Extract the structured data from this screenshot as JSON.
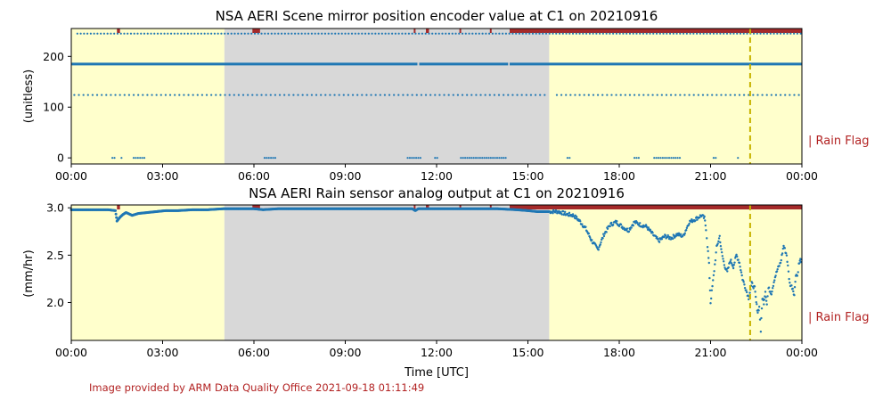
{
  "credit": "Image provided by ARM Data Quality Office 2021-09-18 01:11:49",
  "rain_flag_label": "| Rain Flag",
  "colors": {
    "day_shade": "#ffffcc",
    "night_shade": "#d8d8d8",
    "data": "#1f77b4",
    "rain_flag": "#a52a2a",
    "dashed_marker": "#c8b400",
    "credit_text": "#b22222"
  },
  "chart_data": [
    {
      "type": "scatter",
      "title": "NSA AERI Scene mirror position encoder value at C1 on 20210916",
      "xlabel": "",
      "ylabel": "(unitless)",
      "xlim": [
        0,
        24
      ],
      "ylim": [
        -12,
        255
      ],
      "x_ticks": [
        "00:00",
        "03:00",
        "06:00",
        "09:00",
        "12:00",
        "15:00",
        "18:00",
        "21:00",
        "00:00"
      ],
      "x_tick_values": [
        0,
        3,
        6,
        9,
        12,
        15,
        18,
        21,
        24
      ],
      "y_ticks": [
        "0",
        "100",
        "200"
      ],
      "y_tick_values": [
        0,
        100,
        200
      ],
      "shaded_regions": [
        {
          "from": 0,
          "to": 5.03,
          "kind": "day"
        },
        {
          "from": 5.03,
          "to": 15.7,
          "kind": "night"
        },
        {
          "from": 15.7,
          "to": 24,
          "kind": "day"
        }
      ],
      "dashed_line_x": 22.3,
      "main_level": 185,
      "main_gaps": [
        [
          11.37,
          11.43
        ],
        [
          14.35,
          14.4
        ]
      ],
      "levels": [
        {
          "value": 245,
          "segments": [
            [
              0.2,
              24
            ]
          ],
          "spacing": 0.11
        },
        {
          "value": 124,
          "segments": [
            [
              0.1,
              15.65
            ],
            [
              15.95,
              24
            ]
          ],
          "spacing": 0.15
        },
        {
          "value": 0,
          "segments": [
            [
              1.35,
              1.45
            ],
            [
              1.65,
              1.7
            ],
            [
              2.05,
              2.4
            ],
            [
              6.35,
              6.7
            ],
            [
              11.05,
              11.5
            ],
            [
              11.95,
              12.05
            ],
            [
              12.8,
              14.3
            ],
            [
              16.3,
              16.4
            ],
            [
              18.5,
              18.65
            ],
            [
              19.15,
              20.0
            ],
            [
              21.1,
              21.2
            ],
            [
              21.9,
              21.95
            ]
          ],
          "spacing": 0.07
        }
      ],
      "rain_flags": [
        [
          1.5,
          1.6
        ],
        [
          5.95,
          6.2
        ],
        [
          11.25,
          11.3
        ],
        [
          11.65,
          11.75
        ],
        [
          12.75,
          12.8
        ],
        [
          13.75,
          13.8
        ],
        [
          14.4,
          24
        ]
      ]
    },
    {
      "type": "scatter",
      "title": "NSA AERI Rain sensor analog output at C1 on 20210916",
      "xlabel": "Time [UTC]",
      "ylabel": "(mm/hr)",
      "xlim": [
        0,
        24
      ],
      "ylim": [
        1.6,
        3.03
      ],
      "x_ticks": [
        "00:00",
        "03:00",
        "06:00",
        "09:00",
        "12:00",
        "15:00",
        "18:00",
        "21:00",
        "00:00"
      ],
      "x_tick_values": [
        0,
        3,
        6,
        9,
        12,
        15,
        18,
        21,
        24
      ],
      "y_ticks": [
        "2.0",
        "2.5",
        "3.0"
      ],
      "y_tick_values": [
        2.0,
        2.5,
        3.0
      ],
      "shaded_regions": [
        {
          "from": 0,
          "to": 5.03,
          "kind": "day"
        },
        {
          "from": 5.03,
          "to": 15.7,
          "kind": "night"
        },
        {
          "from": 15.7,
          "to": 24,
          "kind": "day"
        }
      ],
      "dashed_line_x": 22.3,
      "rain_flags": [
        [
          1.5,
          1.6
        ],
        [
          5.95,
          6.2
        ],
        [
          11.25,
          11.3
        ],
        [
          11.65,
          11.75
        ],
        [
          12.75,
          12.8
        ],
        [
          13.75,
          13.8
        ],
        [
          14.4,
          24
        ]
      ],
      "series": [
        {
          "x": [
            0,
            1.2,
            1.45,
            1.5,
            1.6,
            1.7,
            1.8,
            2.0,
            2.2,
            2.5,
            2.8,
            3.1,
            3.5,
            4.0,
            4.5,
            5.0,
            5.5,
            6.0,
            6.3,
            6.8,
            8.0,
            10.0,
            11.2,
            11.3,
            11.4,
            12.0,
            13.0,
            14.0,
            14.6,
            15.0,
            15.3,
            15.7,
            16.0,
            16.3,
            16.5,
            16.7,
            16.9,
            17.1,
            17.3,
            17.5,
            17.7,
            17.9,
            18.1,
            18.3,
            18.5,
            18.7,
            18.9,
            19.1,
            19.3,
            19.5,
            19.7,
            19.9,
            20.1,
            20.3,
            20.5,
            20.7,
            20.8,
            20.85,
            20.9,
            20.95,
            21.0,
            21.1,
            21.2,
            21.3,
            21.35,
            21.45,
            21.55,
            21.65,
            21.75,
            21.85,
            21.95,
            22.05,
            22.15,
            22.25,
            22.35,
            22.45,
            22.5,
            22.55,
            22.6,
            22.65,
            22.7,
            22.75,
            22.8,
            22.85,
            22.9,
            23.0,
            23.1,
            23.2,
            23.3,
            23.4,
            23.5,
            23.6,
            23.7,
            23.75,
            23.8,
            23.85,
            23.9,
            23.95,
            24.0
          ],
          "y": [
            2.98,
            2.98,
            2.97,
            2.86,
            2.9,
            2.93,
            2.95,
            2.92,
            2.94,
            2.95,
            2.96,
            2.97,
            2.97,
            2.98,
            2.98,
            2.99,
            2.99,
            2.99,
            2.98,
            2.99,
            2.99,
            2.99,
            2.99,
            2.97,
            2.99,
            2.99,
            2.99,
            2.99,
            2.98,
            2.97,
            2.96,
            2.96,
            2.96,
            2.93,
            2.92,
            2.86,
            2.78,
            2.65,
            2.56,
            2.72,
            2.82,
            2.85,
            2.8,
            2.76,
            2.85,
            2.82,
            2.8,
            2.72,
            2.65,
            2.7,
            2.68,
            2.72,
            2.7,
            2.85,
            2.88,
            2.92,
            2.89,
            2.78,
            2.6,
            2.4,
            2.0,
            2.28,
            2.58,
            2.7,
            2.55,
            2.4,
            2.32,
            2.45,
            2.38,
            2.5,
            2.42,
            2.25,
            2.15,
            2.05,
            2.2,
            2.15,
            2.0,
            1.9,
            1.95,
            1.7,
            2.05,
            2.0,
            2.12,
            1.98,
            2.15,
            2.1,
            2.25,
            2.35,
            2.42,
            2.6,
            2.5,
            2.2,
            2.15,
            2.08,
            2.3,
            2.28,
            2.4,
            2.45,
            2.43
          ]
        }
      ]
    }
  ]
}
